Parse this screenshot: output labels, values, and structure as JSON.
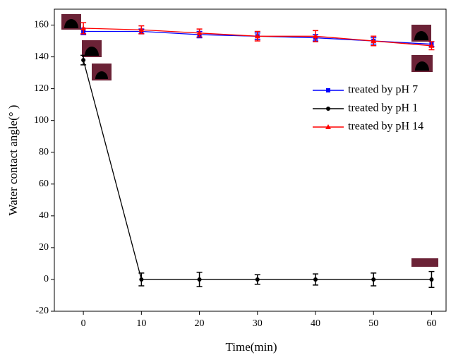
{
  "chart_data": {
    "type": "line",
    "x_label": "Time(min)",
    "y_label": "Water contact angle(° )",
    "x": [
      0,
      10,
      20,
      30,
      40,
      50,
      60
    ],
    "xlim": [
      -5,
      62.5
    ],
    "xticks": [
      0,
      10,
      20,
      30,
      40,
      50,
      60
    ],
    "ylim": [
      -20,
      170
    ],
    "yticks": [
      -20,
      0,
      20,
      40,
      60,
      80,
      100,
      120,
      140,
      160
    ],
    "legend": "upper right",
    "series": [
      {
        "name": "treated by pH 7",
        "color": "#0000ff",
        "marker": "square",
        "values": [
          156,
          156,
          154,
          153,
          152,
          150,
          148
        ],
        "errors": [
          2,
          1.5,
          2,
          2,
          2,
          2,
          1.5
        ]
      },
      {
        "name": "treated by pH 1",
        "color": "#000000",
        "marker": "circle",
        "values": [
          138,
          0,
          0,
          0,
          0,
          0,
          0
        ],
        "errors": [
          3,
          4,
          4.5,
          3,
          3.5,
          4,
          5
        ]
      },
      {
        "name": "treated by pH 14",
        "color": "#ff0000",
        "marker": "triangle",
        "values": [
          158,
          157,
          155,
          153,
          153,
          150,
          147
        ],
        "errors": [
          3.5,
          2.5,
          2.5,
          3,
          3.5,
          3,
          2.5
        ]
      }
    ]
  }
}
